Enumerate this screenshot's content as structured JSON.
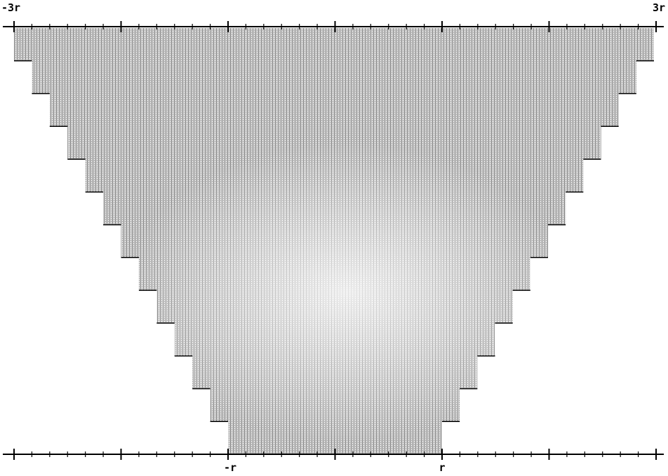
{
  "labels": {
    "top_left": "-3r",
    "top_right": "3r",
    "bottom_left": "-r",
    "bottom_right": "r"
  }
}
